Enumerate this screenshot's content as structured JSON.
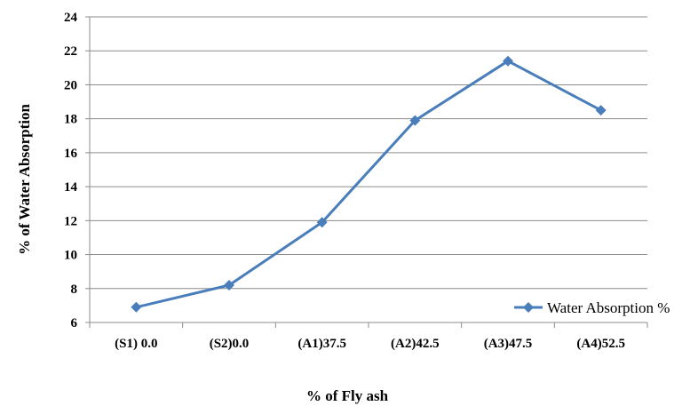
{
  "chart_data": {
    "type": "line",
    "categories": [
      "(S1) 0.0",
      "(S2)0.0",
      "(A1)37.5",
      "(A2)42.5",
      "(A3)47.5",
      "(A4)52.5"
    ],
    "series": [
      {
        "name": "Water Absorption %",
        "values": [
          6.9,
          8.2,
          11.9,
          17.9,
          21.4,
          18.5
        ],
        "color": "#4a7ebb",
        "marker": "diamond"
      }
    ],
    "xlabel": "% of Fly ash",
    "ylabel": "% of Water Absorption",
    "ylim": [
      6,
      24
    ],
    "yticks": [
      6,
      8,
      10,
      12,
      14,
      16,
      18,
      20,
      22,
      24
    ],
    "grid": "horizontal",
    "legend_position": "right"
  }
}
